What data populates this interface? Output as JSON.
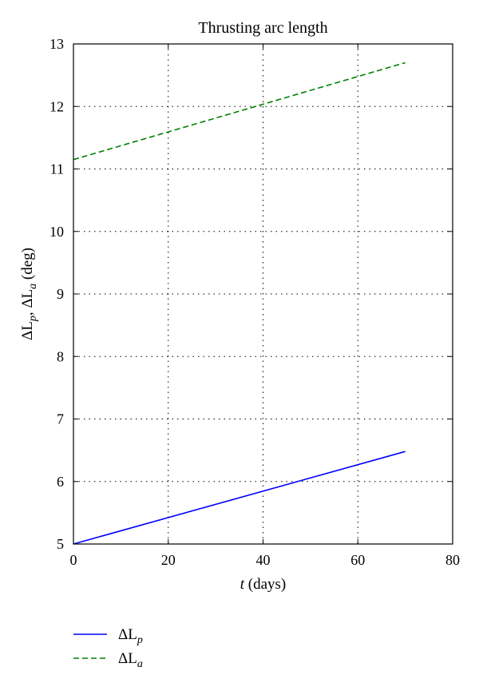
{
  "chart_data": {
    "type": "line",
    "title": "Thrusting arc length",
    "xlabel": {
      "var": "t",
      "unit": " (days)"
    },
    "ylabel": {
      "parts": [
        "ΔL",
        "p",
        ", ΔL",
        "a",
        " (deg)"
      ]
    },
    "xlim": [
      0,
      80
    ],
    "ylim": [
      5,
      13
    ],
    "xticks": [
      0,
      20,
      40,
      60,
      80
    ],
    "yticks": [
      5,
      6,
      7,
      8,
      9,
      10,
      11,
      12,
      13
    ],
    "grid": true,
    "legend_position": "below the plot",
    "series": [
      {
        "name": "ΔL",
        "sub": "p",
        "color": "#0000ff",
        "dash": "solid",
        "x": [
          0,
          70
        ],
        "values": [
          5.0,
          6.48
        ]
      },
      {
        "name": "ΔL",
        "sub": "a",
        "color": "#008000",
        "dash": "dashed",
        "x": [
          0,
          70
        ],
        "values": [
          11.15,
          12.7
        ]
      }
    ]
  }
}
